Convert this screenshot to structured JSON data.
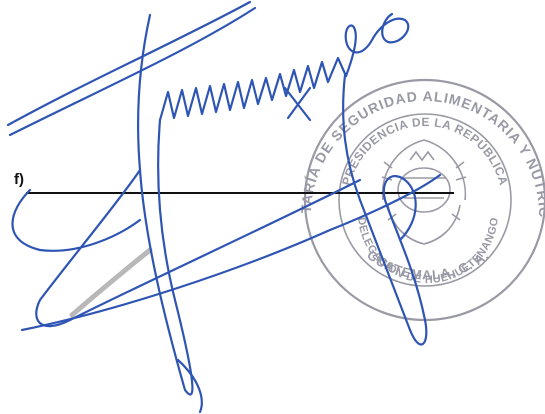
{
  "signature_block": {
    "label": "f)"
  },
  "stamp": {
    "text_outer_top": "SECRETARÍA DE SEGURIDAD ALIMENTARIA Y NUTRICIONAL",
    "text_inner_top": "PRESIDENCIA DE LA REPÚBLICA",
    "text_inner_bottom": "DELEGACIÓN DE HUEHUETENANGO",
    "text_outer_bottom": "GUATEMALA, C. A.",
    "ink_color": "#9a9aa6",
    "emblem": "guatemala-coat-of-arms"
  },
  "signature": {
    "ink_color": "#2f55b4",
    "style": "handwritten"
  }
}
